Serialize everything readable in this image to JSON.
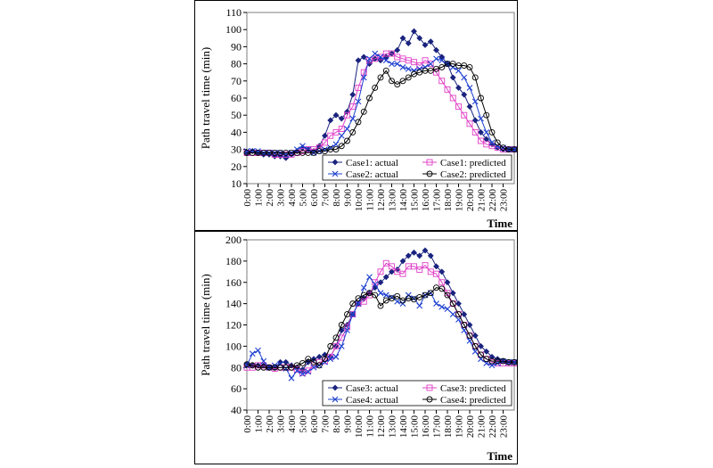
{
  "chart_data": [
    {
      "type": "line",
      "ylabel": "Path travel time (min)",
      "xlabel": "Time",
      "ylim": [
        10,
        110
      ],
      "yticks": [
        10,
        20,
        30,
        40,
        50,
        60,
        70,
        80,
        90,
        100,
        110
      ],
      "xlim": [
        0,
        24
      ],
      "categories": [
        "0:00",
        "1:00",
        "2:00",
        "3:00",
        "4:00",
        "5:00",
        "6:00",
        "7:00",
        "8:00",
        "9:00",
        "10:00",
        "11:00",
        "12:00",
        "13:00",
        "14:00",
        "15:00",
        "16:00",
        "17:00",
        "18:00",
        "19:00",
        "20:00",
        "21:00",
        "22:00",
        "23:00"
      ],
      "grid": false,
      "legend_position": "bottom-right",
      "series": [
        {
          "name": "Case1: actual",
          "color": "#1a237e",
          "marker": "diamond",
          "x": [
            0,
            0.5,
            1,
            1.5,
            2,
            2.5,
            3,
            3.5,
            4,
            4.5,
            5,
            5.5,
            6,
            6.5,
            7,
            7.5,
            8,
            8.5,
            9,
            9.5,
            10,
            10.5,
            11,
            11.5,
            12,
            12.5,
            13,
            13.5,
            14,
            14.5,
            15,
            15.5,
            16,
            16.5,
            17,
            17.5,
            18,
            18.5,
            19,
            19.5,
            20,
            20.5,
            21,
            21.5,
            22,
            22.5,
            23,
            23.5,
            24
          ],
          "values": [
            28,
            29,
            28,
            27,
            27,
            26,
            26,
            25,
            27,
            29,
            31,
            30,
            29,
            32,
            38,
            47,
            50,
            48,
            52,
            62,
            82,
            84,
            80,
            83,
            82,
            84,
            86,
            88,
            95,
            92,
            99,
            95,
            91,
            93,
            88,
            84,
            80,
            72,
            66,
            62,
            55,
            47,
            40,
            36,
            33,
            31,
            30,
            30,
            30
          ]
        },
        {
          "name": "Case1: predicted",
          "color": "#e040c8",
          "marker": "square",
          "x": [
            0,
            0.5,
            1,
            1.5,
            2,
            2.5,
            3,
            3.5,
            4,
            4.5,
            5,
            5.5,
            6,
            6.5,
            7,
            7.5,
            8,
            8.5,
            9,
            9.5,
            10,
            10.5,
            11,
            11.5,
            12,
            12.5,
            13,
            13.5,
            14,
            14.5,
            15,
            15.5,
            16,
            16.5,
            17,
            17.5,
            18,
            18.5,
            19,
            19.5,
            20,
            20.5,
            21,
            21.5,
            22,
            22.5,
            23,
            23.5,
            24
          ],
          "values": [
            28,
            28,
            28,
            28,
            28,
            27,
            27,
            27,
            27,
            28,
            29,
            30,
            30,
            31,
            34,
            38,
            40,
            42,
            50,
            55,
            66,
            75,
            82,
            83,
            84,
            86,
            86,
            84,
            83,
            82,
            81,
            79,
            82,
            80,
            75,
            70,
            65,
            60,
            55,
            50,
            45,
            40,
            35,
            33,
            32,
            31,
            30,
            30,
            30
          ]
        },
        {
          "name": "Case2: actual",
          "color": "#1e40d0",
          "marker": "x",
          "x": [
            0,
            0.5,
            1,
            1.5,
            2,
            2.5,
            3,
            3.5,
            4,
            4.5,
            5,
            5.5,
            6,
            6.5,
            7,
            7.5,
            8,
            8.5,
            9,
            9.5,
            10,
            10.5,
            11,
            11.5,
            12,
            12.5,
            13,
            13.5,
            14,
            14.5,
            15,
            15.5,
            16,
            16.5,
            17,
            17.5,
            18,
            18.5,
            19,
            19.5,
            20,
            20.5,
            21,
            21.5,
            22,
            22.5,
            23,
            23.5,
            24
          ],
          "values": [
            29,
            29,
            29,
            28,
            28,
            28,
            28,
            27,
            28,
            30,
            32,
            30,
            28,
            29,
            30,
            31,
            33,
            38,
            42,
            48,
            58,
            72,
            83,
            86,
            84,
            82,
            80,
            80,
            78,
            77,
            76,
            77,
            78,
            80,
            83,
            82,
            80,
            78,
            76,
            72,
            66,
            58,
            48,
            40,
            34,
            32,
            31,
            30,
            30
          ]
        },
        {
          "name": "Case2: predicted",
          "color": "#000000",
          "marker": "circle",
          "x": [
            0,
            0.5,
            1,
            1.5,
            2,
            2.5,
            3,
            3.5,
            4,
            4.5,
            5,
            5.5,
            6,
            6.5,
            7,
            7.5,
            8,
            8.5,
            9,
            9.5,
            10,
            10.5,
            11,
            11.5,
            12,
            12.5,
            13,
            13.5,
            14,
            14.5,
            15,
            15.5,
            16,
            16.5,
            17,
            17.5,
            18,
            18.5,
            19,
            19.5,
            20,
            20.5,
            21,
            21.5,
            22,
            22.5,
            23,
            23.5,
            24
          ],
          "values": [
            28,
            28,
            28,
            28,
            28,
            28,
            28,
            28,
            28,
            28,
            28,
            28,
            28,
            29,
            29,
            30,
            30,
            32,
            35,
            40,
            46,
            52,
            60,
            66,
            72,
            76,
            70,
            68,
            70,
            72,
            74,
            75,
            76,
            76,
            77,
            78,
            80,
            80,
            79,
            79,
            78,
            72,
            60,
            50,
            40,
            34,
            31,
            30,
            30
          ]
        }
      ]
    },
    {
      "type": "line",
      "ylabel": "Path travel time (min)",
      "xlabel": "Time",
      "ylim": [
        40,
        200
      ],
      "yticks": [
        40,
        60,
        80,
        100,
        120,
        140,
        160,
        180,
        200
      ],
      "xlim": [
        0,
        24
      ],
      "categories": [
        "0:00",
        "1:00",
        "2:00",
        "3:00",
        "4:00",
        "5:00",
        "6:00",
        "7:00",
        "8:00",
        "9:00",
        "10:00",
        "11:00",
        "12:00",
        "13:00",
        "14:00",
        "15:00",
        "16:00",
        "17:00",
        "18:00",
        "19:00",
        "20:00",
        "21:00",
        "22:00",
        "23:00"
      ],
      "grid": false,
      "legend_position": "bottom-right",
      "series": [
        {
          "name": "Case3: actual",
          "color": "#1a237e",
          "marker": "diamond",
          "x": [
            0,
            0.5,
            1,
            1.5,
            2,
            2.5,
            3,
            3.5,
            4,
            4.5,
            5,
            5.5,
            6,
            6.5,
            7,
            7.5,
            8,
            8.5,
            9,
            9.5,
            10,
            10.5,
            11,
            11.5,
            12,
            12.5,
            13,
            13.5,
            14,
            14.5,
            15,
            15.5,
            16,
            16.5,
            17,
            17.5,
            18,
            18.5,
            19,
            19.5,
            20,
            20.5,
            21,
            21.5,
            22,
            22.5,
            23,
            23.5,
            24
          ],
          "values": [
            83,
            82,
            82,
            82,
            80,
            80,
            85,
            85,
            82,
            80,
            78,
            85,
            88,
            90,
            92,
            90,
            100,
            115,
            120,
            130,
            140,
            145,
            150,
            155,
            160,
            165,
            170,
            172,
            180,
            185,
            188,
            185,
            190,
            185,
            175,
            170,
            160,
            150,
            140,
            130,
            120,
            110,
            100,
            95,
            90,
            88,
            86,
            85,
            85
          ]
        },
        {
          "name": "Case3: predicted",
          "color": "#e040c8",
          "marker": "square",
          "x": [
            0,
            0.5,
            1,
            1.5,
            2,
            2.5,
            3,
            3.5,
            4,
            4.5,
            5,
            5.5,
            6,
            6.5,
            7,
            7.5,
            8,
            8.5,
            9,
            9.5,
            10,
            10.5,
            11,
            11.5,
            12,
            12.5,
            13,
            13.5,
            14,
            14.5,
            15,
            15.5,
            16,
            16.5,
            17,
            17.5,
            18,
            18.5,
            19,
            19.5,
            20,
            20.5,
            21,
            21.5,
            22,
            22.5,
            23,
            23.5,
            24
          ],
          "values": [
            80,
            80,
            82,
            82,
            80,
            79,
            80,
            80,
            80,
            78,
            75,
            77,
            82,
            85,
            86,
            90,
            100,
            108,
            118,
            130,
            140,
            142,
            148,
            160,
            170,
            178,
            175,
            170,
            168,
            175,
            175,
            172,
            176,
            170,
            168,
            160,
            150,
            140,
            130,
            120,
            110,
            100,
            92,
            88,
            85,
            84,
            84,
            84,
            84
          ]
        },
        {
          "name": "Case4: actual",
          "color": "#1e40d0",
          "marker": "x",
          "x": [
            0,
            0.5,
            1,
            1.5,
            2,
            2.5,
            3,
            3.5,
            4,
            4.5,
            5,
            5.5,
            6,
            6.5,
            7,
            7.5,
            8,
            8.5,
            9,
            9.5,
            10,
            10.5,
            11,
            11.5,
            12,
            12.5,
            13,
            13.5,
            14,
            14.5,
            15,
            15.5,
            16,
            16.5,
            17,
            17.5,
            18,
            18.5,
            19,
            19.5,
            20,
            20.5,
            21,
            21.5,
            22,
            22.5,
            23,
            23.5,
            24
          ],
          "values": [
            82,
            93,
            96,
            86,
            80,
            82,
            83,
            79,
            70,
            77,
            74,
            76,
            80,
            82,
            85,
            88,
            90,
            100,
            115,
            130,
            140,
            155,
            165,
            158,
            150,
            148,
            146,
            142,
            140,
            148,
            145,
            138,
            148,
            150,
            140,
            137,
            135,
            130,
            125,
            115,
            105,
            95,
            88,
            84,
            82,
            84,
            86,
            85,
            85
          ]
        },
        {
          "name": "Case4: predicted",
          "color": "#000000",
          "marker": "circle",
          "x": [
            0,
            0.5,
            1,
            1.5,
            2,
            2.5,
            3,
            3.5,
            4,
            4.5,
            5,
            5.5,
            6,
            6.5,
            7,
            7.5,
            8,
            8.5,
            9,
            9.5,
            10,
            10.5,
            11,
            11.5,
            12,
            12.5,
            13,
            13.5,
            14,
            14.5,
            15,
            15.5,
            16,
            16.5,
            17,
            17.5,
            18,
            18.5,
            19,
            19.5,
            20,
            20.5,
            21,
            21.5,
            22,
            22.5,
            23,
            23.5,
            24
          ],
          "values": [
            83,
            82,
            80,
            80,
            80,
            80,
            80,
            80,
            80,
            82,
            84,
            88,
            85,
            82,
            88,
            100,
            108,
            120,
            130,
            140,
            145,
            148,
            150,
            148,
            138,
            143,
            145,
            147,
            143,
            145,
            144,
            146,
            148,
            150,
            155,
            154,
            148,
            140,
            130,
            120,
            110,
            100,
            92,
            88,
            86,
            86,
            86,
            85,
            85
          ]
        }
      ]
    }
  ]
}
